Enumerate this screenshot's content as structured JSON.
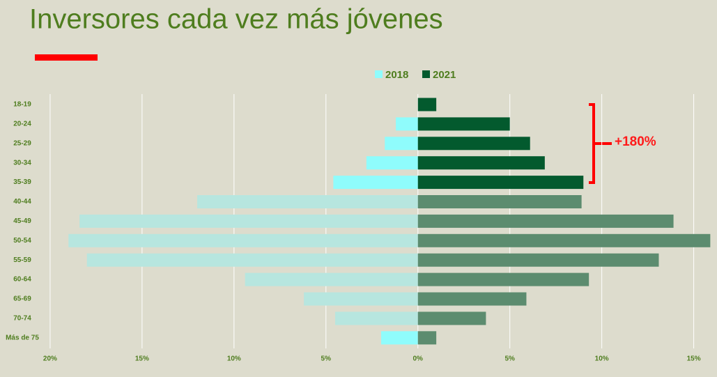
{
  "chart_data": {
    "type": "pyramid",
    "title": "Inversores cada vez más jóvenes",
    "categories": [
      "18-19",
      "20-24",
      "25-29",
      "30-34",
      "35-39",
      "40-44",
      "45-49",
      "50-54",
      "55-59",
      "60-64",
      "65-69",
      "70-74",
      "Más de 75"
    ],
    "series": [
      {
        "name": "2018",
        "color": "#8ffcfc",
        "values": [
          0,
          -1.2,
          -1.8,
          -2.8,
          -4.6,
          -12.0,
          -18.4,
          -19.0,
          -18.0,
          -9.4,
          -6.2,
          -4.5,
          -2.0
        ],
        "colors": [
          "#8ffcfc",
          "#8ffcfc",
          "#8ffcfc",
          "#8ffcfc",
          "#8ffcfc",
          "#b7e6df",
          "#b7e6df",
          "#b7e6df",
          "#b7e6df",
          "#b7e6df",
          "#b7e6df",
          "#b7e6df",
          "#8ffcfc"
        ]
      },
      {
        "name": "2021",
        "color": "#035a2e",
        "values": [
          1.0,
          5.0,
          6.1,
          6.9,
          9.0,
          8.9,
          13.9,
          15.9,
          13.1,
          9.3,
          5.9,
          3.7,
          1.0
        ],
        "colors": [
          "#035a2e",
          "#035a2e",
          "#035a2e",
          "#035a2e",
          "#035a2e",
          "#5c8c6f",
          "#5c8c6f",
          "#5c8c6f",
          "#5c8c6f",
          "#5c8c6f",
          "#5c8c6f",
          "#5c8c6f",
          "#5c8c6f"
        ]
      }
    ],
    "xlim": [
      -20.3,
      16
    ],
    "xticks": [
      {
        "value": -20,
        "label": "20%"
      },
      {
        "value": -15,
        "label": "15%"
      },
      {
        "value": -10,
        "label": "10%"
      },
      {
        "value": -5,
        "label": "5%"
      },
      {
        "value": 0,
        "label": "0%"
      },
      {
        "value": 5,
        "label": "5%"
      },
      {
        "value": 10,
        "label": "10%"
      },
      {
        "value": 15,
        "label": "15%"
      }
    ],
    "grid": true,
    "legend": "top",
    "annotation": "+180%"
  }
}
